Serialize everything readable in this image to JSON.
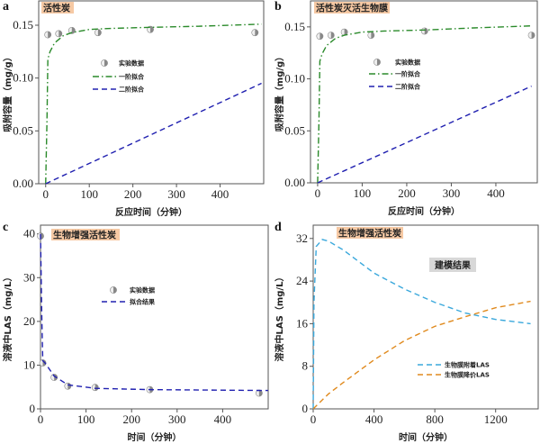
{
  "chart_data": [
    {
      "type": "line",
      "panel": "a",
      "tag": "活性炭",
      "xlabel": "反应时间（分钟）",
      "ylabel": "吸附容量（mg/g）",
      "xlim": [
        -16,
        500
      ],
      "ylim": [
        0,
        0.173
      ],
      "xticks": [
        0,
        100,
        200,
        300,
        400
      ],
      "yticks": [
        0.0,
        0.05,
        0.1,
        0.15
      ],
      "ytick_labels": [
        "0.00",
        "0.05",
        "0.10",
        "0.15"
      ],
      "series": [
        {
          "name": "实验数据",
          "kind": "scatter",
          "x": [
            5,
            30,
            60,
            120,
            240,
            480
          ],
          "y": [
            0.141,
            0.142,
            0.145,
            0.143,
            0.146,
            0.143
          ]
        },
        {
          "name": "一阶拟合",
          "kind": "line",
          "color": "#2a8a2a",
          "style": "dashdot",
          "x": [
            0,
            3,
            5,
            10,
            20,
            40,
            60,
            100,
            150,
            240,
            350,
            495
          ],
          "y": [
            0,
            0.06,
            0.118,
            0.125,
            0.133,
            0.14,
            0.143,
            0.146,
            0.147,
            0.148,
            0.149,
            0.151
          ]
        },
        {
          "name": "二阶拟合",
          "kind": "line",
          "color": "#2020b0",
          "style": "dash",
          "x": [
            0,
            495
          ],
          "y": [
            0,
            0.095
          ]
        }
      ]
    },
    {
      "type": "line",
      "panel": "b",
      "tag": "活性炭灭活生物膜",
      "xlabel": "反应时间（分钟）",
      "ylabel": "吸附容量（mg/g）",
      "xlim": [
        -16,
        493
      ],
      "ylim": [
        0,
        0.175
      ],
      "xticks": [
        0,
        100,
        200,
        300,
        400
      ],
      "yticks": [
        0.0,
        0.05,
        0.1,
        0.15
      ],
      "ytick_labels": [
        "0.00",
        "0.05",
        "0.10",
        "0.15"
      ],
      "series": [
        {
          "name": "实验数据",
          "kind": "scatter",
          "x": [
            5,
            30,
            60,
            120,
            240,
            480
          ],
          "y": [
            0.141,
            0.142,
            0.145,
            0.142,
            0.146,
            0.142
          ]
        },
        {
          "name": "一阶拟合",
          "kind": "line",
          "color": "#2a8a2a",
          "style": "dashdot",
          "x": [
            0,
            3,
            5,
            10,
            20,
            40,
            60,
            100,
            150,
            240,
            350,
            480
          ],
          "y": [
            0,
            0.06,
            0.117,
            0.124,
            0.132,
            0.139,
            0.142,
            0.145,
            0.146,
            0.147,
            0.149,
            0.151
          ]
        },
        {
          "name": "二阶拟合",
          "kind": "line",
          "color": "#2020b0",
          "style": "dash",
          "x": [
            0,
            480
          ],
          "y": [
            0,
            0.093
          ]
        }
      ]
    },
    {
      "type": "line",
      "panel": "c",
      "tag": "生物增强活性炭",
      "xlabel": "时间（分钟）",
      "ylabel": "溶液中LAS（mg/L）",
      "xlim": [
        0,
        500
      ],
      "ylim": [
        0,
        42
      ],
      "xticks": [
        0,
        100,
        200,
        300,
        400
      ],
      "yticks": [
        0,
        10,
        20,
        30,
        40
      ],
      "ytick_labels": [
        "0",
        "10",
        "20",
        "30",
        "40"
      ],
      "series": [
        {
          "name": "实验数据",
          "kind": "scatter",
          "x": [
            0,
            5,
            30,
            60,
            120,
            240,
            480
          ],
          "y": [
            39.5,
            10.5,
            7.2,
            5.2,
            4.9,
            4.4,
            3.6
          ]
        },
        {
          "name": "拟合结果",
          "kind": "line",
          "color": "#2020b0",
          "style": "dash",
          "x": [
            0,
            3,
            5,
            10,
            30,
            60,
            120,
            240,
            500
          ],
          "y": [
            40,
            20,
            11,
            10.5,
            7.5,
            5.5,
            4.7,
            4.4,
            4.2
          ]
        }
      ]
    },
    {
      "type": "line",
      "panel": "d",
      "tag": "生物增强活性炭",
      "note": "建模结果",
      "xlabel": "时间（分钟）",
      "ylabel": "溶液中LAS（mg/L）",
      "xlim": [
        0,
        1480
      ],
      "ylim": [
        0,
        34.5
      ],
      "xticks": [
        0,
        400,
        800,
        1200
      ],
      "yticks": [
        0,
        8,
        16,
        24,
        32
      ],
      "ytick_labels": [
        "0",
        "8",
        "16",
        "24",
        "32"
      ],
      "series": [
        {
          "name": "生物膜附着LAS",
          "kind": "line",
          "color": "#3aa8dc",
          "style": "dash",
          "x": [
            0,
            5,
            20,
            60,
            100,
            200,
            400,
            600,
            800,
            1000,
            1200,
            1430
          ],
          "y": [
            0,
            20,
            30.5,
            31.8,
            31.5,
            29.8,
            25.5,
            22.5,
            20,
            18,
            16.8,
            16
          ]
        },
        {
          "name": "生物膜降价LAS",
          "kind": "line",
          "color": "#e08a1e",
          "style": "dash",
          "x": [
            0,
            100,
            200,
            400,
            600,
            800,
            1000,
            1200,
            1430
          ],
          "y": [
            0,
            2.8,
            5,
            9.2,
            12.8,
            15.5,
            17.3,
            19,
            20.2
          ]
        }
      ]
    }
  ]
}
